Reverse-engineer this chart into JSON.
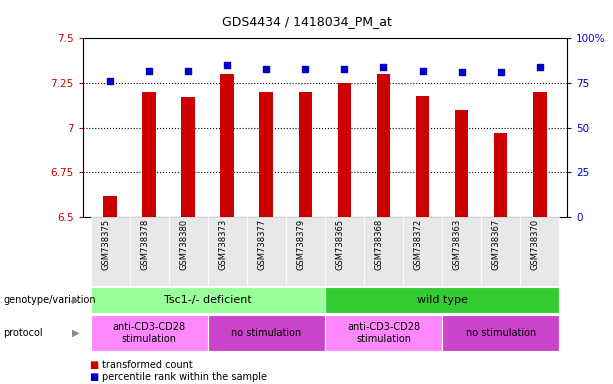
{
  "title": "GDS4434 / 1418034_PM_at",
  "samples": [
    "GSM738375",
    "GSM738378",
    "GSM738380",
    "GSM738373",
    "GSM738377",
    "GSM738379",
    "GSM738365",
    "GSM738368",
    "GSM738372",
    "GSM738363",
    "GSM738367",
    "GSM738370"
  ],
  "bar_values": [
    6.62,
    7.2,
    7.17,
    7.3,
    7.2,
    7.2,
    7.25,
    7.3,
    7.18,
    7.1,
    6.97,
    7.2
  ],
  "dot_values": [
    76,
    82,
    82,
    85,
    83,
    83,
    83,
    84,
    82,
    81,
    81,
    84
  ],
  "bar_color": "#cc0000",
  "dot_color": "#0000cc",
  "ylim_left": [
    6.5,
    7.5
  ],
  "ylim_right": [
    0,
    100
  ],
  "yticks_left": [
    6.5,
    6.75,
    7.0,
    7.25,
    7.5
  ],
  "ytick_labels_left": [
    "6.5",
    "6.75",
    "7",
    "7.25",
    "7.5"
  ],
  "yticks_right": [
    0,
    25,
    50,
    75,
    100
  ],
  "ytick_labels_right": [
    "0",
    "25",
    "50",
    "75",
    "100%"
  ],
  "hlines": [
    6.75,
    7.0,
    7.25
  ],
  "genotype_groups": [
    {
      "label": "Tsc1-/- deficient",
      "start": 0,
      "end": 6,
      "color": "#99ff99"
    },
    {
      "label": "wild type",
      "start": 6,
      "end": 12,
      "color": "#33cc33"
    }
  ],
  "protocol_groups": [
    {
      "label": "anti-CD3-CD28\nstimulation",
      "start": 0,
      "end": 3,
      "color": "#ff88ff"
    },
    {
      "label": "no stimulation",
      "start": 3,
      "end": 6,
      "color": "#cc44cc"
    },
    {
      "label": "anti-CD3-CD28\nstimulation",
      "start": 6,
      "end": 9,
      "color": "#ff88ff"
    },
    {
      "label": "no stimulation",
      "start": 9,
      "end": 12,
      "color": "#cc44cc"
    }
  ],
  "legend_bar_label": "transformed count",
  "legend_dot_label": "percentile rank within the sample",
  "genotype_label": "genotype/variation",
  "protocol_label": "protocol",
  "bar_width": 0.35
}
